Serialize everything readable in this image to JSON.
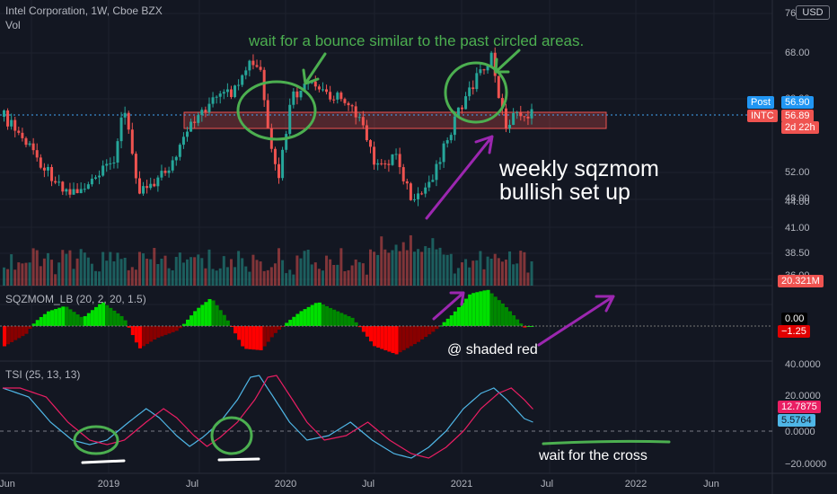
{
  "header": {
    "title": "Intel Corporation, 1W, Cboe BZX",
    "volume_label": "Vol",
    "currency": "USD"
  },
  "price_axis": {
    "ticks": [
      "76",
      "68.00",
      "60.00",
      "52.00",
      "48.00",
      "44.00",
      "41.00",
      "38.50",
      "36.00"
    ]
  },
  "price_tags": {
    "post_label": "Post",
    "post_value": "56.90",
    "ticker": "INTC",
    "last_value": "56.89",
    "countdown": "2d 22h",
    "volume_value": "20.321M"
  },
  "sqzmom": {
    "label": "SQZMOM_LB (20, 2, 20, 1.5)",
    "zero_value": "0.00",
    "last_value": "−1.25"
  },
  "tsi": {
    "label": "TSI (25, 13, 13)",
    "ticks": [
      "40.0000",
      "20.0000",
      "0.0000",
      "−20.0000"
    ],
    "signal_value": "12.7875",
    "tsi_value": "5.5764"
  },
  "time_axis": {
    "ticks": [
      "Jun",
      "2019",
      "Jul",
      "2020",
      "Jul",
      "2021",
      "Jul",
      "2022",
      "Jun"
    ]
  },
  "annotations": {
    "top": "wait for a bounce similar to the past circled areas.",
    "setup_line1": "weekly sqzmom",
    "setup_line2": "bullish set up",
    "shaded": "@ shaded red",
    "cross": "wait for the cross"
  },
  "colors": {
    "up": "#26a69a",
    "down": "#ef5350",
    "tsi": "#4fb6e6",
    "signal": "#e91e63",
    "sq_green": "#00c000",
    "sq_red": "#e00000",
    "note_green": "#4caf50",
    "note_purple": "#9c27b0"
  }
}
